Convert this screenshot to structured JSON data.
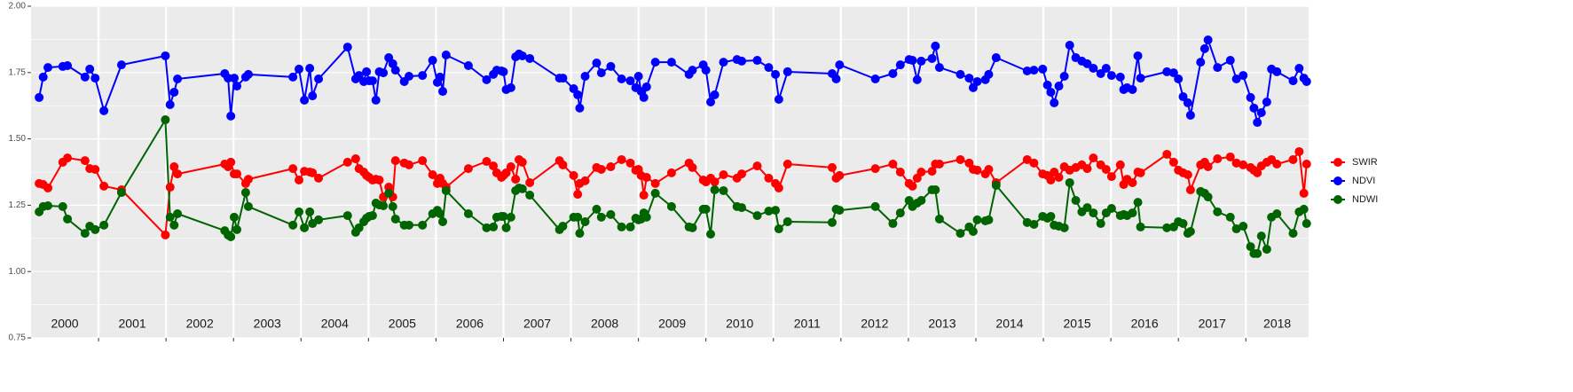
{
  "chart_data": {
    "type": "line",
    "x": [
      2000.12,
      2000.18,
      2000.25,
      2000.47,
      2000.54,
      2000.8,
      2000.87,
      2000.95,
      2001.08,
      2001.34,
      2001.99,
      2002.06,
      2002.12,
      2002.17,
      2002.87,
      2002.92,
      2002.96,
      2003.01,
      2003.05,
      2003.18,
      2003.22,
      2003.88,
      2003.97,
      2004.05,
      2004.13,
      2004.17,
      2004.26,
      2004.69,
      2004.81,
      2004.86,
      2004.93,
      2004.97,
      2005.01,
      2005.06,
      2005.11,
      2005.16,
      2005.22,
      2005.3,
      2005.36,
      2005.4,
      2005.53,
      2005.6,
      2005.8,
      2005.95,
      2006.02,
      2006.06,
      2006.1,
      2006.15,
      2006.48,
      2006.75,
      2006.85,
      2006.9,
      2006.97,
      2007.0,
      2007.04,
      2007.11,
      2007.18,
      2007.23,
      2007.28,
      2007.39,
      2007.83,
      2007.88,
      2008.04,
      2008.1,
      2008.13,
      2008.21,
      2008.38,
      2008.45,
      2008.59,
      2008.75,
      2008.88,
      2008.96,
      2009.0,
      2009.04,
      2009.08,
      2009.12,
      2009.25,
      2009.49,
      2009.75,
      2009.8,
      2009.96,
      2010.0,
      2010.07,
      2010.13,
      2010.26,
      2010.46,
      2010.53,
      2010.76,
      2010.93,
      2011.03,
      2011.08,
      2011.21,
      2011.87,
      2011.93,
      2011.98,
      2012.51,
      2012.77,
      2012.88,
      2013.01,
      2013.06,
      2013.13,
      2013.19,
      2013.35,
      2013.4,
      2013.46,
      2013.77,
      2013.9,
      2013.96,
      2014.02,
      2014.14,
      2014.19,
      2014.3,
      2014.76,
      2014.86,
      2014.99,
      2015.06,
      2015.11,
      2015.16,
      2015.23,
      2015.31,
      2015.39,
      2015.48,
      2015.57,
      2015.65,
      2015.74,
      2015.85,
      2015.93,
      2016.01,
      2016.14,
      2016.19,
      2016.24,
      2016.32,
      2016.4,
      2016.44,
      2016.83,
      2016.93,
      2017.0,
      2017.07,
      2017.14,
      2017.18,
      2017.33,
      2017.39,
      2017.44,
      2017.58,
      2017.77,
      2017.86,
      2017.96,
      2018.07,
      2018.12,
      2018.17,
      2018.23,
      2018.31,
      2018.38,
      2018.46,
      2018.7,
      2018.79,
      2018.86,
      2018.9
    ],
    "series": [
      {
        "name": "SWIR",
        "color": "#ff0000",
        "values": [
          1.332,
          1.328,
          1.315,
          1.412,
          1.428,
          1.418,
          1.388,
          1.385,
          1.322,
          1.308,
          1.138,
          1.318,
          1.395,
          1.368,
          1.405,
          1.395,
          1.412,
          1.368,
          1.368,
          1.332,
          1.348,
          1.388,
          1.345,
          1.378,
          1.375,
          1.372,
          1.352,
          1.412,
          1.425,
          1.388,
          1.375,
          1.362,
          1.355,
          1.345,
          1.348,
          1.345,
          1.281,
          1.318,
          1.281,
          1.418,
          1.409,
          1.402,
          1.418,
          1.365,
          1.332,
          1.352,
          1.332,
          1.318,
          1.388,
          1.415,
          1.398,
          1.372,
          1.355,
          1.362,
          1.372,
          1.395,
          1.348,
          1.422,
          1.412,
          1.335,
          1.418,
          1.402,
          1.362,
          1.291,
          1.332,
          1.342,
          1.392,
          1.385,
          1.395,
          1.422,
          1.409,
          1.382,
          1.385,
          1.362,
          1.288,
          1.355,
          1.332,
          1.372,
          1.409,
          1.392,
          1.345,
          1.338,
          1.352,
          1.338,
          1.365,
          1.352,
          1.368,
          1.398,
          1.352,
          1.332,
          1.315,
          1.405,
          1.392,
          1.352,
          1.362,
          1.388,
          1.405,
          1.375,
          1.332,
          1.322,
          1.352,
          1.375,
          1.378,
          1.405,
          1.405,
          1.422,
          1.409,
          1.385,
          1.382,
          1.368,
          1.385,
          1.335,
          1.422,
          1.409,
          1.368,
          1.362,
          1.345,
          1.375,
          1.355,
          1.395,
          1.382,
          1.392,
          1.402,
          1.388,
          1.428,
          1.402,
          1.385,
          1.358,
          1.402,
          1.328,
          1.348,
          1.335,
          1.375,
          1.372,
          1.442,
          1.412,
          1.382,
          1.372,
          1.365,
          1.308,
          1.402,
          1.412,
          1.395,
          1.425,
          1.432,
          1.409,
          1.402,
          1.392,
          1.382,
          1.372,
          1.398,
          1.412,
          1.422,
          1.405,
          1.422,
          1.452,
          1.295,
          1.405
        ]
      },
      {
        "name": "NDVI",
        "color": "#0000ff",
        "values": [
          1.656,
          1.733,
          1.769,
          1.773,
          1.776,
          1.733,
          1.763,
          1.729,
          1.606,
          1.779,
          1.813,
          1.629,
          1.676,
          1.726,
          1.746,
          1.729,
          1.586,
          1.729,
          1.699,
          1.733,
          1.743,
          1.733,
          1.763,
          1.646,
          1.766,
          1.662,
          1.726,
          1.846,
          1.726,
          1.739,
          1.716,
          1.753,
          1.719,
          1.719,
          1.646,
          1.753,
          1.749,
          1.806,
          1.783,
          1.759,
          1.716,
          1.736,
          1.739,
          1.796,
          1.713,
          1.733,
          1.679,
          1.816,
          1.776,
          1.723,
          1.743,
          1.759,
          1.756,
          1.753,
          1.686,
          1.693,
          1.809,
          1.82,
          1.813,
          1.803,
          1.729,
          1.729,
          1.689,
          1.666,
          1.616,
          1.736,
          1.786,
          1.749,
          1.773,
          1.726,
          1.719,
          1.693,
          1.736,
          1.679,
          1.656,
          1.696,
          1.789,
          1.789,
          1.743,
          1.759,
          1.779,
          1.759,
          1.639,
          1.666,
          1.789,
          1.799,
          1.793,
          1.796,
          1.769,
          1.743,
          1.649,
          1.753,
          1.746,
          1.726,
          1.779,
          1.726,
          1.746,
          1.779,
          1.799,
          1.796,
          1.723,
          1.793,
          1.803,
          1.85,
          1.769,
          1.743,
          1.729,
          1.693,
          1.716,
          1.723,
          1.743,
          1.806,
          1.756,
          1.759,
          1.763,
          1.703,
          1.676,
          1.636,
          1.699,
          1.736,
          1.853,
          1.806,
          1.793,
          1.783,
          1.766,
          1.746,
          1.766,
          1.739,
          1.733,
          1.686,
          1.693,
          1.686,
          1.813,
          1.729,
          1.753,
          1.749,
          1.726,
          1.659,
          1.636,
          1.589,
          1.789,
          1.84,
          1.873,
          1.769,
          1.796,
          1.726,
          1.739,
          1.656,
          1.616,
          1.562,
          1.599,
          1.639,
          1.763,
          1.753,
          1.719,
          1.766,
          1.729,
          1.716
        ]
      },
      {
        "name": "NDWI",
        "color": "#006400",
        "values": [
          1.225,
          1.245,
          1.248,
          1.245,
          1.198,
          1.144,
          1.171,
          1.158,
          1.175,
          1.298,
          1.572,
          1.205,
          1.175,
          1.218,
          1.154,
          1.138,
          1.131,
          1.205,
          1.158,
          1.298,
          1.245,
          1.175,
          1.225,
          1.165,
          1.225,
          1.181,
          1.195,
          1.211,
          1.148,
          1.165,
          1.188,
          1.201,
          1.208,
          1.211,
          1.258,
          1.251,
          1.248,
          1.295,
          1.245,
          1.198,
          1.175,
          1.175,
          1.175,
          1.218,
          1.231,
          1.218,
          1.188,
          1.305,
          1.218,
          1.165,
          1.168,
          1.205,
          1.208,
          1.208,
          1.165,
          1.205,
          1.305,
          1.315,
          1.312,
          1.288,
          1.158,
          1.171,
          1.205,
          1.205,
          1.144,
          1.188,
          1.235,
          1.205,
          1.215,
          1.168,
          1.168,
          1.201,
          1.195,
          1.198,
          1.221,
          1.205,
          1.295,
          1.245,
          1.168,
          1.165,
          1.235,
          1.235,
          1.141,
          1.308,
          1.305,
          1.245,
          1.241,
          1.211,
          1.228,
          1.231,
          1.161,
          1.188,
          1.185,
          1.235,
          1.231,
          1.245,
          1.181,
          1.221,
          1.268,
          1.245,
          1.258,
          1.268,
          1.308,
          1.308,
          1.198,
          1.144,
          1.168,
          1.151,
          1.195,
          1.191,
          1.195,
          1.325,
          1.185,
          1.178,
          1.208,
          1.201,
          1.208,
          1.175,
          1.171,
          1.165,
          1.335,
          1.268,
          1.225,
          1.241,
          1.221,
          1.181,
          1.221,
          1.238,
          1.211,
          1.215,
          1.211,
          1.221,
          1.261,
          1.168,
          1.165,
          1.168,
          1.188,
          1.181,
          1.144,
          1.151,
          1.302,
          1.295,
          1.281,
          1.225,
          1.205,
          1.161,
          1.171,
          1.094,
          1.068,
          1.068,
          1.134,
          1.084,
          1.205,
          1.218,
          1.144,
          1.225,
          1.235,
          1.181
        ]
      }
    ],
    "xlim": [
      2000,
      2018.93
    ],
    "vlines": [
      2001,
      2002,
      2003,
      2004,
      2005,
      2006,
      2007,
      2008,
      2009,
      2010,
      2011,
      2012,
      2013,
      2014,
      2015,
      2016,
      2017,
      2018
    ],
    "year_labels": [
      "2000",
      "2001",
      "2002",
      "2003",
      "2004",
      "2005",
      "2006",
      "2007",
      "2008",
      "2009",
      "2010",
      "2011",
      "2012",
      "2013",
      "2014",
      "2015",
      "2016",
      "2017",
      "2018"
    ],
    "ylim": [
      0.75,
      2.0
    ],
    "yticks": [
      {
        "value": 0.75,
        "label": "0.75"
      },
      {
        "value": 1.0,
        "label": "1.00"
      },
      {
        "value": 1.25,
        "label": "1.25"
      },
      {
        "value": 1.5,
        "label": "1.50"
      },
      {
        "value": 1.75,
        "label": "1.75"
      },
      {
        "value": 2.0,
        "label": "2.00"
      }
    ],
    "grid": true,
    "legend": "right"
  }
}
